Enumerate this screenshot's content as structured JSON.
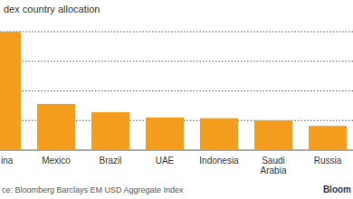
{
  "chart_data": {
    "type": "bar",
    "title": "dex country allocation",
    "categories": [
      "ina",
      "Mexico",
      "Brazil",
      "UAE",
      "Indonesia",
      "Saudi Arabia",
      "Russia"
    ],
    "values": [
      20,
      7.8,
      6.4,
      5.5,
      5.4,
      5.0,
      4.1
    ],
    "color": "#f39c1e",
    "ylim": [
      0,
      20
    ],
    "yticks": [
      0,
      5,
      10,
      15,
      20
    ],
    "grid": true,
    "tick_labels": "x",
    "source": "ce: Bloomberg Barclays EM USD Aggregate Index",
    "logo": "Bloom"
  }
}
